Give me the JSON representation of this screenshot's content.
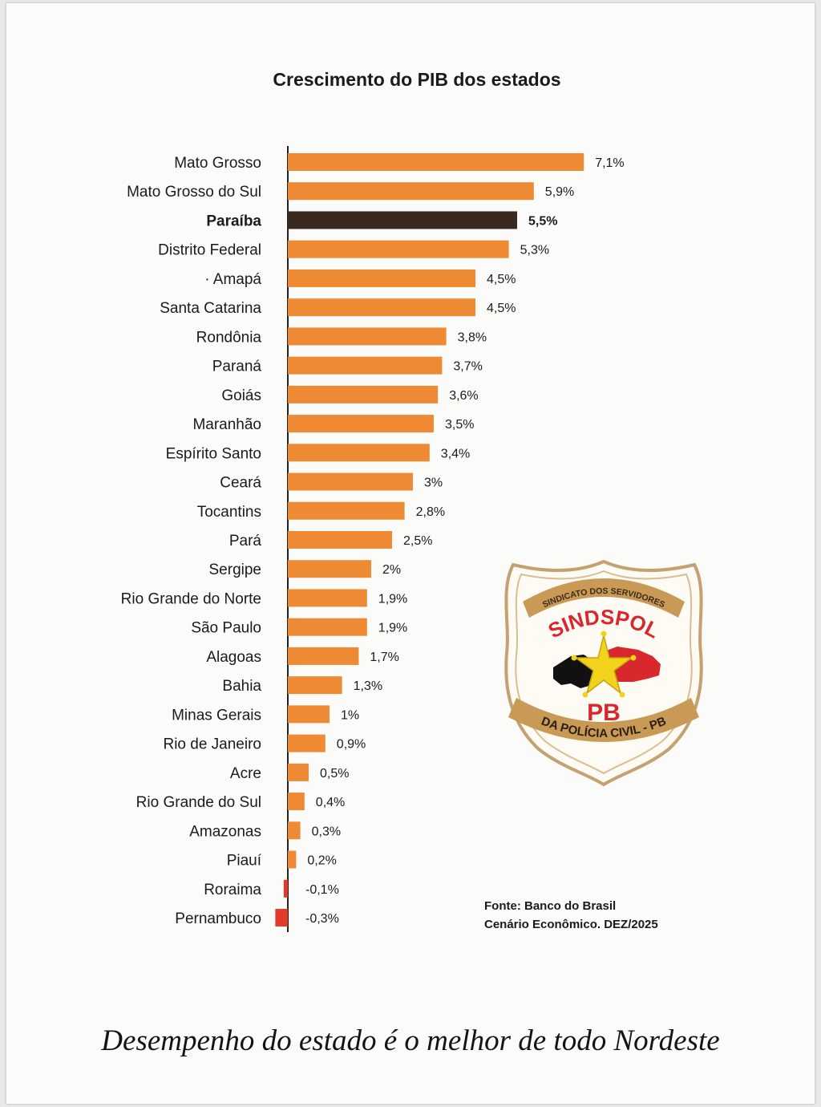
{
  "chart_data": {
    "type": "bar",
    "orientation": "horizontal",
    "title": "Crescimento do PIB dos estados",
    "unit": "%",
    "categories": [
      "Mato Grosso",
      "Mato Grosso do Sul",
      "Paraíba",
      "Distrito Federal",
      "· Amapá",
      "Santa Catarina",
      "Rondônia",
      "Paraná",
      "Goiás",
      "Maranhão",
      "Espírito Santo",
      "Ceará",
      "Tocantins",
      "Pará",
      "Sergipe",
      "Rio Grande do Norte",
      "São Paulo",
      "Alagoas",
      "Bahia",
      "Minas Gerais",
      "Rio de Janeiro",
      "Acre",
      "Rio Grande do Sul",
      "Amazonas",
      "Piauí",
      "Roraima",
      "Pernambuco"
    ],
    "values": [
      7.1,
      5.9,
      5.5,
      5.3,
      4.5,
      4.5,
      3.8,
      3.7,
      3.6,
      3.5,
      3.4,
      3.0,
      2.8,
      2.5,
      2.0,
      1.9,
      1.9,
      1.7,
      1.3,
      1.0,
      0.9,
      0.5,
      0.4,
      0.3,
      0.2,
      -0.1,
      -0.3
    ],
    "value_labels": [
      "7,1%",
      "5,9%",
      "5,5%",
      "5,3%",
      "4,5%",
      "4,5%",
      "3,8%",
      "3,7%",
      "3,6%",
      "3,5%",
      "3,4%",
      "3%",
      "2,8%",
      "2,5%",
      "2%",
      "1,9%",
      "1,9%",
      "1,7%",
      "1,3%",
      "1%",
      "0,9%",
      "0,5%",
      "0,4%",
      "0,3%",
      "0,2%",
      "-0,1%",
      "-0,3%"
    ],
    "highlight": "Paraíba",
    "colors": {
      "bar": "#ee8a33",
      "highlight": "#3a2a1e",
      "negative": "#e23a2a",
      "axis": "#222222"
    },
    "grid": false,
    "legend": "none"
  },
  "source": {
    "line1": "Fonte:  Banco do Brasil",
    "line2": "Cenário Econômico. DEZ/2025"
  },
  "headline": "Desempenho do estado é o melhor de todo Nordeste",
  "logo": {
    "top_text": "SINDICATO DOS SERVIDORES",
    "name": "SINDSPOL",
    "state": "PB",
    "bottom_text": "DA POLÍCIA CIVIL - PB",
    "colors": {
      "ribbon": "#c99a55",
      "red": "#d9272e",
      "star": "#f2d21a",
      "black": "#111111",
      "outline": "#b98f55"
    }
  }
}
